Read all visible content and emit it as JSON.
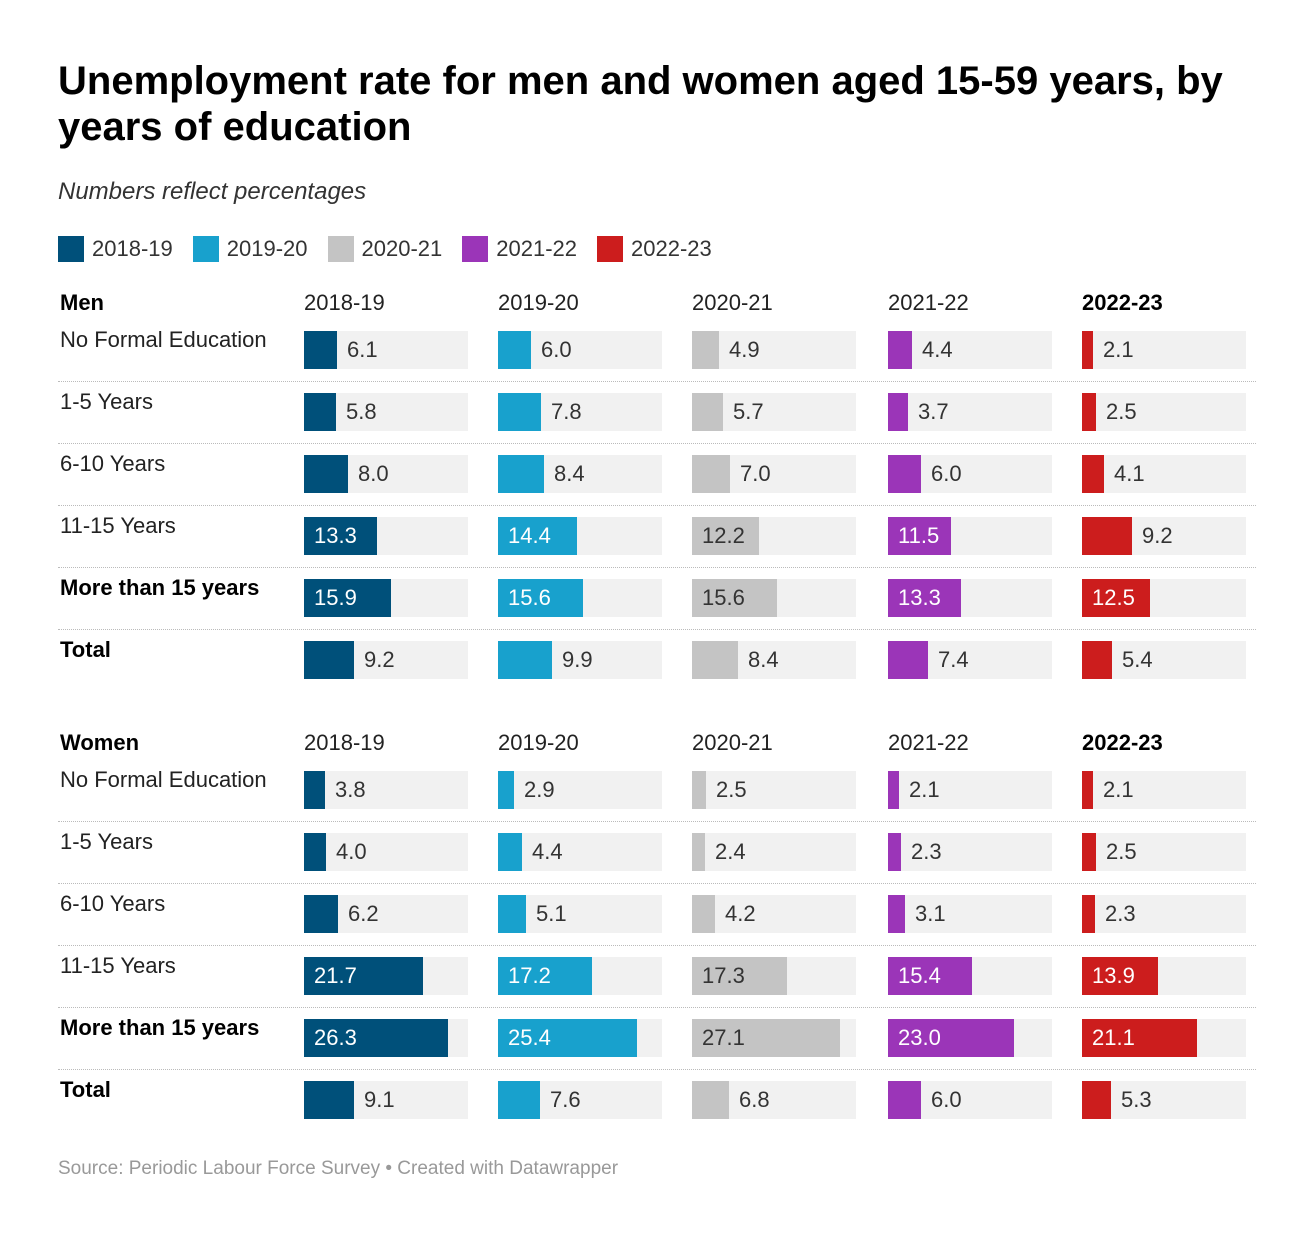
{
  "title": "Unemployment rate for men and women aged 15-59 years, by years of education",
  "subtitle": "Numbers reflect percentages",
  "source": "Source: Periodic Labour Force Survey • Created with Datawrapper",
  "colors": {
    "2018-19": "#00507a",
    "2019-20": "#18a1cd",
    "2020-21": "#c4c4c4",
    "2021-22": "#9b35b8",
    "2022-23": "#cc1d1d",
    "cell_background": "#f1f1f1"
  },
  "legend": [
    {
      "label": "2018-19",
      "color": "#00507a"
    },
    {
      "label": "2019-20",
      "color": "#18a1cd"
    },
    {
      "label": "2020-21",
      "color": "#c4c4c4"
    },
    {
      "label": "2021-22",
      "color": "#9b35b8"
    },
    {
      "label": "2022-23",
      "color": "#cc1d1d"
    }
  ],
  "chart_data": {
    "type": "bar",
    "title": "Unemployment rate for men and women aged 15-59 years, by years of education",
    "subtitle": "Numbers reflect percentages",
    "columns": [
      "2018-19",
      "2019-20",
      "2020-21",
      "2021-22",
      "2022-23"
    ],
    "bold_column": "2022-23",
    "xlim": [
      0,
      30
    ],
    "grid": false,
    "legend_position": "top-left",
    "sections": [
      {
        "name": "Men",
        "rows": [
          {
            "label": "No Formal Education",
            "bold": false,
            "values": [
              6.1,
              6.0,
              4.9,
              4.4,
              2.1
            ]
          },
          {
            "label": "1-5 Years",
            "bold": false,
            "values": [
              5.8,
              7.8,
              5.7,
              3.7,
              2.5
            ]
          },
          {
            "label": "6-10 Years",
            "bold": false,
            "values": [
              8.0,
              8.4,
              7.0,
              6.0,
              4.1
            ]
          },
          {
            "label": "11-15 Years",
            "bold": false,
            "values": [
              13.3,
              14.4,
              12.2,
              11.5,
              9.2
            ]
          },
          {
            "label": "More than 15 years",
            "bold": true,
            "values": [
              15.9,
              15.6,
              15.6,
              13.3,
              12.5
            ]
          },
          {
            "label": "Total",
            "bold": true,
            "values": [
              9.2,
              9.9,
              8.4,
              7.4,
              5.4
            ]
          }
        ]
      },
      {
        "name": "Women",
        "rows": [
          {
            "label": "No Formal Education",
            "bold": false,
            "values": [
              3.8,
              2.9,
              2.5,
              2.1,
              2.1
            ]
          },
          {
            "label": "1-5 Years",
            "bold": false,
            "values": [
              4.0,
              4.4,
              2.4,
              2.3,
              2.5
            ]
          },
          {
            "label": "6-10 Years",
            "bold": false,
            "values": [
              6.2,
              5.1,
              4.2,
              3.1,
              2.3
            ]
          },
          {
            "label": "11-15 Years",
            "bold": false,
            "values": [
              21.7,
              17.2,
              17.3,
              15.4,
              13.9
            ]
          },
          {
            "label": "More than 15 years",
            "bold": true,
            "values": [
              26.3,
              25.4,
              27.1,
              23.0,
              21.1
            ]
          },
          {
            "label": "Total",
            "bold": true,
            "values": [
              9.1,
              7.6,
              6.8,
              6.0,
              5.3
            ]
          }
        ]
      }
    ]
  }
}
